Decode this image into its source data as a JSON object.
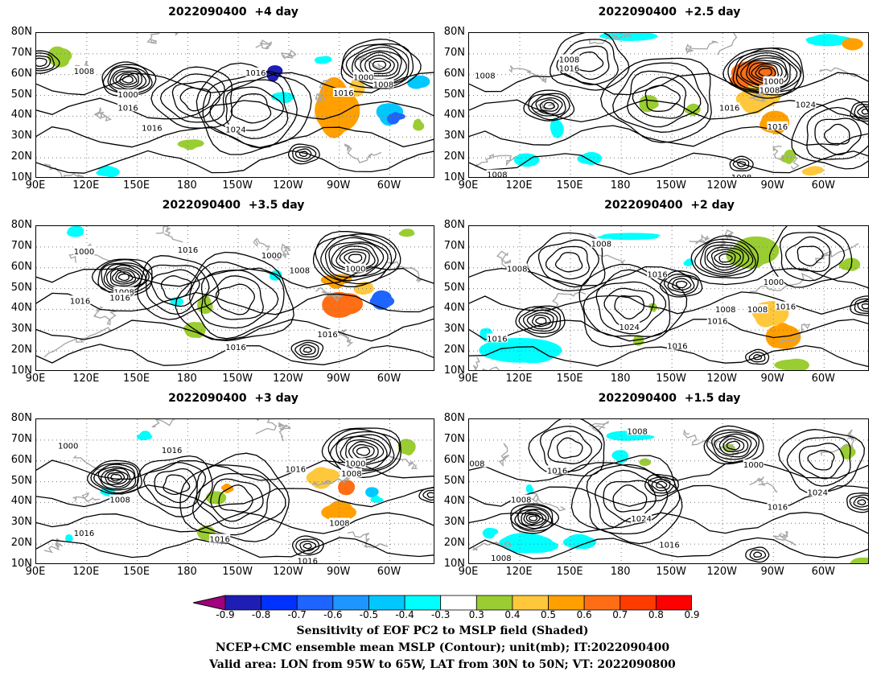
{
  "panels": [
    {
      "title": "2022090400  +4 day",
      "contour_labels": [
        "1008",
        "1000",
        "1016",
        "1016",
        "1024",
        "1016",
        "1000",
        "1008",
        "1016"
      ]
    },
    {
      "title": "2022090400  +2.5 day",
      "contour_labels": [
        "1008",
        "1008",
        "1016",
        "1000",
        "1008",
        "1016",
        "1024",
        "1016",
        "1008",
        "1008"
      ]
    },
    {
      "title": "2022090400  +3.5 day",
      "contour_labels": [
        "1000",
        "1016",
        "1000",
        "1008",
        "1016",
        "1008",
        "1016",
        "1000",
        "1016",
        "1016"
      ]
    },
    {
      "title": "2022090400  +2 day",
      "contour_labels": [
        "1008",
        "1008",
        "1016",
        "1016",
        "1024",
        "1016",
        "1000",
        "1008",
        "1008",
        "1016",
        "1016"
      ]
    },
    {
      "title": "2022090400  +3 day",
      "contour_labels": [
        "1000",
        "1016",
        "1008",
        "1016",
        "1000",
        "1008",
        "1016",
        "1016",
        "1008",
        "1016"
      ]
    },
    {
      "title": "2022090400  +1.5 day",
      "contour_labels": [
        "008",
        "1008",
        "1016",
        "1008",
        "1024",
        "1016",
        "1000",
        "1024",
        "1016",
        "1008"
      ]
    }
  ],
  "lat_labels": [
    "80N",
    "70N",
    "60N",
    "50N",
    "40N",
    "30N",
    "20N",
    "10N"
  ],
  "lon_labels": [
    "90E",
    "120E",
    "150E",
    "180",
    "150W",
    "120W",
    "90W",
    "60W"
  ],
  "colorbar": {
    "labels": [
      "-0.9",
      "-0.8",
      "-0.7",
      "-0.6",
      "-0.5",
      "-0.4",
      "-0.3",
      "0.3",
      "0.4",
      "0.5",
      "0.6",
      "0.7",
      "0.8",
      "0.9"
    ],
    "colors": [
      "#a0007d",
      "#1e1eb4",
      "#0032ff",
      "#1e64ff",
      "#1e96ff",
      "#00c8ff",
      "#00ffff",
      "#ffffff",
      "#9acd32",
      "#ffc83c",
      "#ffa000",
      "#ff6e14",
      "#ff3c00",
      "#ff0000",
      "#ff9bcd"
    ]
  },
  "footer": {
    "line1": "Sensitivity of EOF PC2 to MSLP field (Shaded)",
    "line2": "NCEP+CMC ensemble mean MSLP (Contour); unit(mb); IT:2022090400",
    "line3": "Valid area: LON from 95W to 65W, LAT from 30N to 50N; VT: 2022090800"
  }
}
